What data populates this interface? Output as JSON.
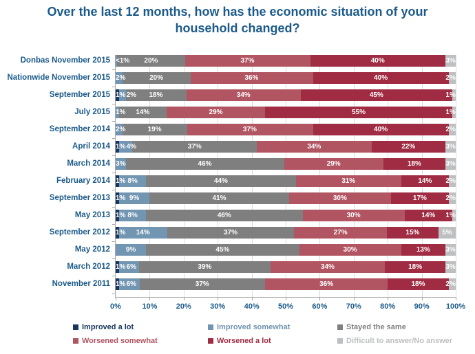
{
  "title": "Over the last 12 months, how has the economic situation of your household changed?",
  "colors": {
    "title_text": "#1B5A8A",
    "axis_text": "#1B5A8A",
    "axis_line": "#A6A6A6",
    "gridline": "#DCDCDC",
    "bar_label_text": "#FFFFFF"
  },
  "chart_data": {
    "type": "bar",
    "orientation": "horizontal",
    "stacked": true,
    "xlim": [
      0,
      100
    ],
    "x_ticks": [
      "0%",
      "10%",
      "20%",
      "30%",
      "40%",
      "50%",
      "60%",
      "70%",
      "80%",
      "90%",
      "100%"
    ],
    "grid": true,
    "legend_position": "bottom",
    "categories": [
      "Donbas November 2015",
      "Nationwide November 2015",
      "September 2015",
      "July 2015",
      "September 2014",
      "April 2014",
      "March 2014",
      "February 2014",
      "September 2013",
      "May 2013",
      "September 2012",
      "May 2012",
      "March 2012",
      "November 2011"
    ],
    "series": [
      {
        "name": "Improved a lot",
        "color": "#17375E",
        "values": [
          0,
          0,
          1,
          0,
          0,
          1,
          0,
          1,
          1,
          1,
          1,
          0,
          1,
          1
        ],
        "labels": [
          "",
          "",
          "1%",
          "",
          "",
          "1%",
          "",
          "1%",
          "1%",
          "1%",
          "1%",
          "",
          "1%",
          "1%"
        ]
      },
      {
        "name": "Improved somewhat",
        "color": "#7295B1",
        "values": [
          0.5,
          2,
          2,
          1,
          2,
          4,
          3,
          8,
          9,
          8,
          14,
          9,
          6,
          6
        ],
        "labels": [
          "<1%",
          "2%",
          "2%",
          "1%",
          "2%",
          "4%",
          "3%",
          "8%",
          "9%",
          "8%",
          "14%",
          "9%",
          "6%",
          "6%"
        ]
      },
      {
        "name": "Stayed the same",
        "color": "#7F7F7F",
        "values": [
          20,
          20,
          18,
          14,
          19,
          37,
          46,
          44,
          41,
          46,
          37,
          45,
          39,
          37
        ],
        "labels": [
          "20%",
          "20%",
          "18%",
          "14%",
          "19%",
          "37%",
          "46%",
          "44%",
          "41%",
          "46%",
          "37%",
          "45%",
          "39%",
          "37%"
        ]
      },
      {
        "name": "Worsened somewhat",
        "color": "#B25563",
        "values": [
          37,
          36,
          34,
          29,
          37,
          34,
          29,
          31,
          30,
          30,
          27,
          30,
          34,
          36
        ],
        "labels": [
          "37%",
          "36%",
          "34%",
          "29%",
          "37%",
          "34%",
          "29%",
          "31%",
          "30%",
          "30%",
          "27%",
          "30%",
          "34%",
          "36%"
        ]
      },
      {
        "name": "Worsened a lot",
        "color": "#A02C43",
        "values": [
          40,
          40,
          45,
          55,
          40,
          22,
          18,
          14,
          17,
          14,
          15,
          13,
          18,
          18
        ],
        "labels": [
          "40%",
          "40%",
          "45%",
          "55%",
          "40%",
          "22%",
          "18%",
          "14%",
          "17%",
          "14%",
          "15%",
          "13%",
          "18%",
          "18%"
        ]
      },
      {
        "name": "Difficult to answer/No answer",
        "color": "#BDBFC1",
        "values": [
          3,
          2,
          1,
          1,
          2,
          3,
          3,
          2,
          2,
          1,
          5,
          3,
          3,
          2
        ],
        "labels": [
          "3%",
          "2%",
          "1%",
          "1%",
          "2%",
          "3%",
          "3%",
          "2%",
          "2%",
          "1%",
          "5%",
          "3%",
          "3%",
          "2%"
        ]
      }
    ]
  }
}
